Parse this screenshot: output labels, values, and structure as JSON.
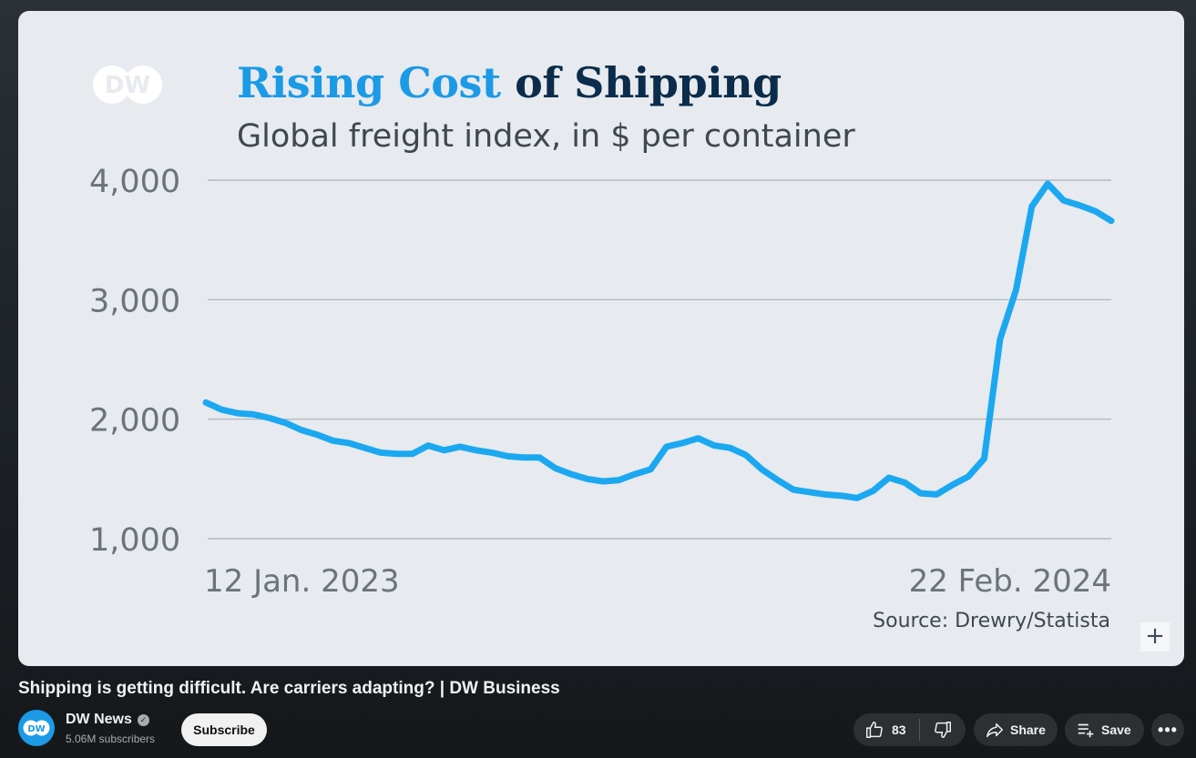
{
  "video_frame": {
    "logo_text": "DW",
    "title_part1": "Rising Cost",
    "title_part2": "of Shipping",
    "subtitle": "Global freight index, in $ per container",
    "source": "Source: Drewry/Statista",
    "plus_label": "+"
  },
  "chart_data": {
    "type": "line",
    "title": "Rising Cost of Shipping",
    "subtitle": "Global freight index, in $ per container",
    "xlabel": "",
    "ylabel": "",
    "x_tick_labels": [
      "12 Jan. 2023",
      "22 Feb. 2024"
    ],
    "y_ticks": [
      1000,
      2000,
      3000,
      4000
    ],
    "y_tick_labels": [
      "1,000",
      "2,000",
      "3,000",
      "4,000"
    ],
    "ylim": [
      1000,
      4000
    ],
    "grid": "horizontal",
    "color": "#1ba8f0",
    "series": [
      {
        "values": [
          2140,
          2080,
          2050,
          2040,
          2010,
          1970,
          1910,
          1870,
          1820,
          1800,
          1760,
          1720,
          1710,
          1710,
          1780,
          1740,
          1770,
          1740,
          1720,
          1690,
          1680,
          1680,
          1590,
          1540,
          1500,
          1480,
          1490,
          1540,
          1580,
          1770,
          1800,
          1840,
          1780,
          1760,
          1700,
          1580,
          1490,
          1410,
          1390,
          1370,
          1360,
          1340,
          1400,
          1510,
          1470,
          1380,
          1370,
          1450,
          1520,
          1670,
          2670,
          3080,
          3780,
          3970,
          3830,
          3790,
          3740,
          3660
        ]
      }
    ]
  },
  "below_video": {
    "title": "Shipping is getting difficult. Are carriers adapting? | DW Business",
    "channel_name": "DW News",
    "avatar_text": "DW",
    "subscribers": "5.06M subscribers",
    "subscribe_label": "Subscribe",
    "likes": "83",
    "share_label": "Share",
    "save_label": "Save",
    "more_label": "•••"
  },
  "icons": [
    "verified-icon",
    "thumbs-up-icon",
    "thumbs-down-icon",
    "share-icon",
    "save-playlist-icon",
    "more-icon",
    "plus-icon"
  ]
}
